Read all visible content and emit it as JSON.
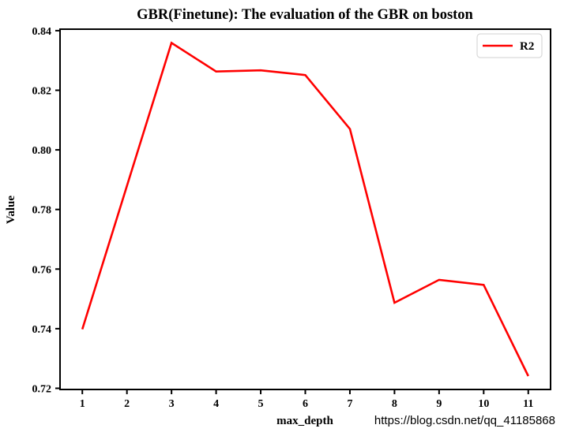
{
  "chart_data": {
    "type": "line",
    "title": "GBR(Finetune): The evaluation of the GBR on boston",
    "xlabel": "max_depth",
    "ylabel": "Value",
    "x": [
      1,
      2,
      3,
      4,
      5,
      6,
      7,
      8,
      9,
      10,
      11
    ],
    "series": [
      {
        "name": "R2",
        "color": "#ff0000",
        "values": [
          0.7398,
          0.7879,
          0.8359,
          0.8263,
          0.8267,
          0.8251,
          0.807,
          0.7487,
          0.7564,
          0.7547,
          0.7241
        ]
      }
    ],
    "x_ticks": [
      1,
      2,
      3,
      4,
      5,
      6,
      7,
      8,
      9,
      10,
      11
    ],
    "y_ticks": [
      0.72,
      0.74,
      0.76,
      0.78,
      0.8,
      0.82,
      0.84
    ],
    "y_tick_decimals": 2,
    "xlim": [
      0.5,
      11.5
    ],
    "ylim": [
      0.7196,
      0.8405
    ],
    "grid": false,
    "legend_position": "upper right",
    "axis_color": "#000000",
    "background_color": "#ffffff"
  },
  "watermark": {
    "text": "https://blog.csdn.net/qq_41185868",
    "color": "#cccccc"
  }
}
